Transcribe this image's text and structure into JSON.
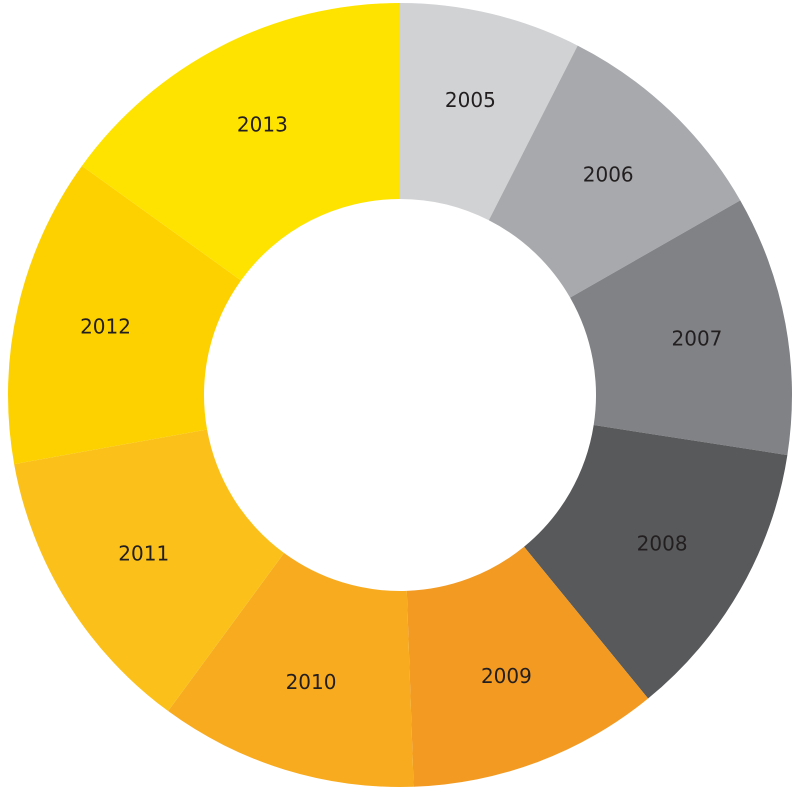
{
  "chart_data": {
    "type": "pie",
    "donut": true,
    "title": "",
    "legend": "none",
    "categories": [
      "2005",
      "2006",
      "2007",
      "2008",
      "2009",
      "2010",
      "2011",
      "2012",
      "2013"
    ],
    "values": [
      8.1,
      10.0,
      11.6,
      12.6,
      11.2,
      11.5,
      13.1,
      13.8,
      16.3
    ],
    "colors": [
      "#d1d2d4",
      "#a7a9ac",
      "#808285",
      "#58595b",
      "#f39a22",
      "#f8ab1f",
      "#fbc11a",
      "#fdd100",
      "#fee300"
    ],
    "start": "12 o'clock",
    "direction": "clockwise"
  }
}
